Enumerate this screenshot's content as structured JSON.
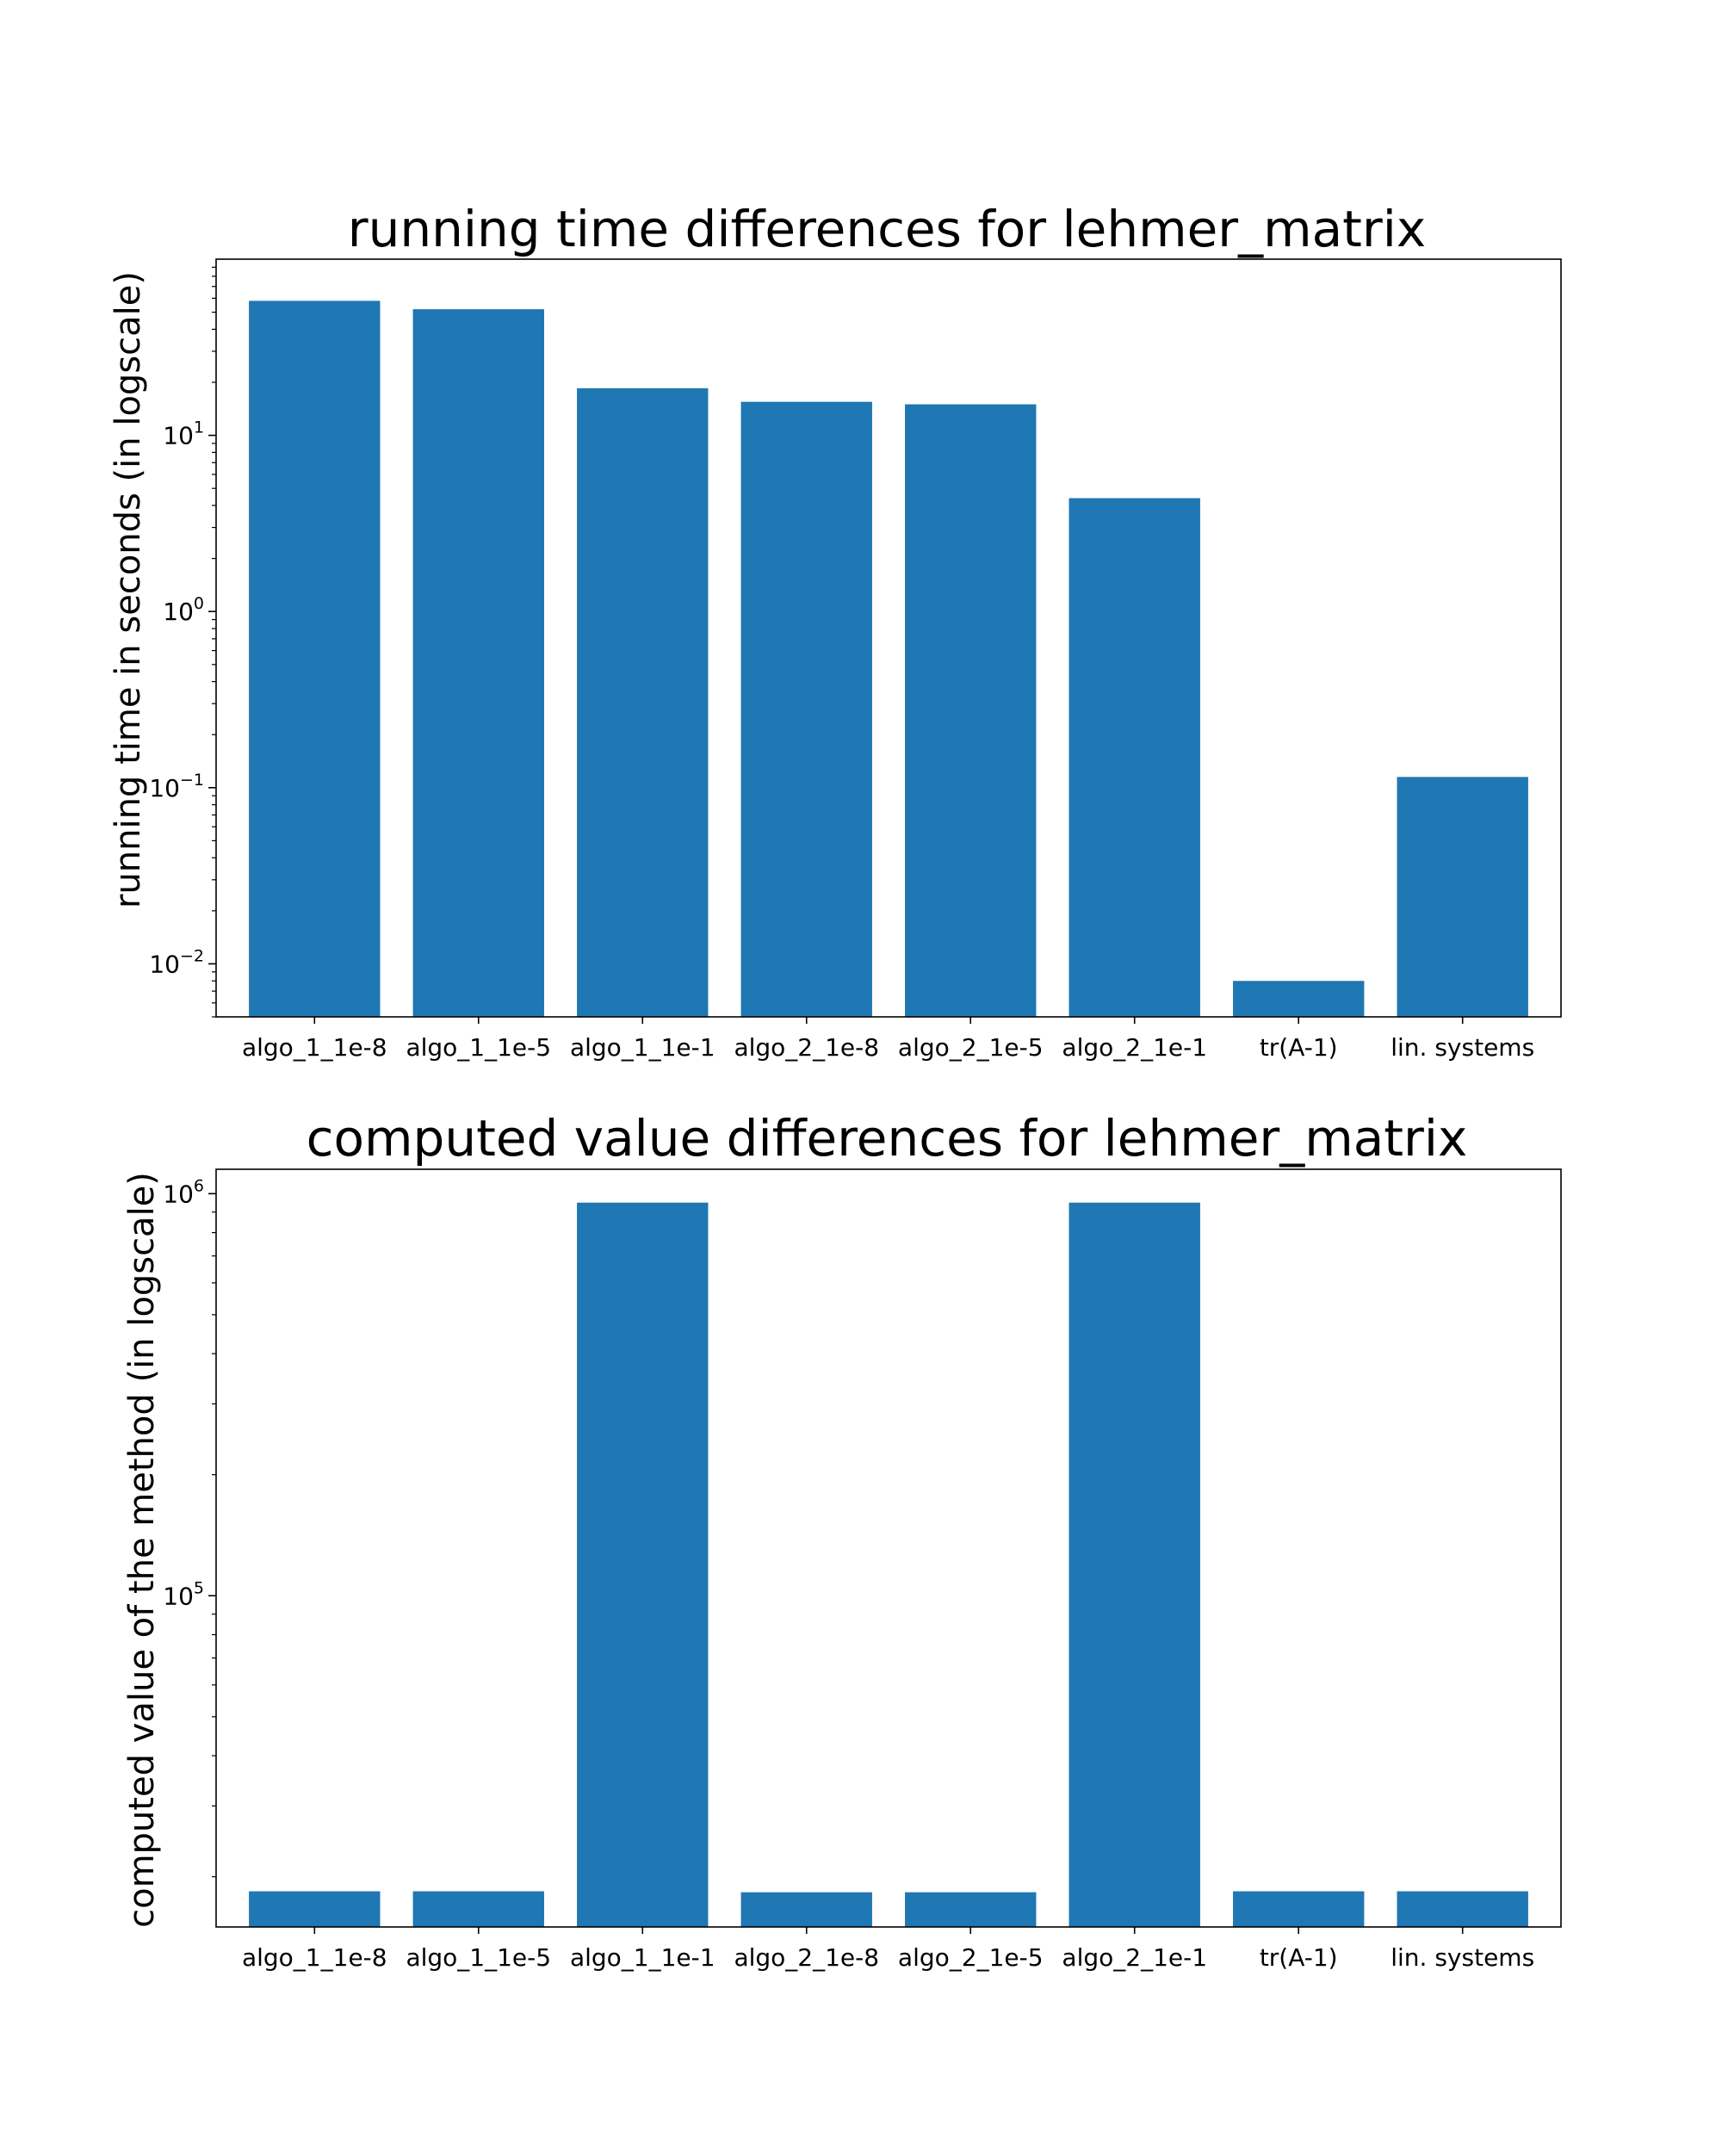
{
  "chart_data": [
    {
      "type": "bar",
      "title": "running time differences for lehmer_matrix",
      "ylabel": "running time in seconds (in logscale)",
      "xlabel": "",
      "yscale": "log",
      "ylim": [
        0.005,
        100
      ],
      "yticks": [
        {
          "value": 0.01,
          "base": "10",
          "exp": "−2"
        },
        {
          "value": 0.1,
          "base": "10",
          "exp": "−1"
        },
        {
          "value": 1,
          "base": "10",
          "exp": "0"
        },
        {
          "value": 10,
          "base": "10",
          "exp": "1"
        }
      ],
      "categories": [
        "algo_1_1e-8",
        "algo_1_1e-5",
        "algo_1_1e-1",
        "algo_2_1e-8",
        "algo_2_1e-5",
        "algo_2_1e-1",
        "tr(A-1)",
        "lin. systems"
      ],
      "values": [
        58,
        52,
        18.5,
        15.5,
        15,
        4.4,
        0.008,
        0.115
      ],
      "color": "#1f77b4",
      "grid": false,
      "legend": "none"
    },
    {
      "type": "bar",
      "title": "computed value differences for lehmer_matrix",
      "ylabel": "computed value of the method (in logscale)",
      "xlabel": "",
      "yscale": "log",
      "ylim": [
        15000,
        1150000
      ],
      "yticks": [
        {
          "value": 100000,
          "base": "10",
          "exp": "5"
        },
        {
          "value": 1000000,
          "base": "10",
          "exp": "6"
        }
      ],
      "categories": [
        "algo_1_1e-8",
        "algo_1_1e-5",
        "algo_1_1e-1",
        "algo_2_1e-8",
        "algo_2_1e-5",
        "algo_2_1e-1",
        "tr(A-1)",
        "lin. systems"
      ],
      "values": [
        18400,
        18400,
        950000,
        18300,
        18300,
        950000,
        18400,
        18400
      ],
      "color": "#1f77b4",
      "grid": false,
      "legend": "none"
    }
  ]
}
